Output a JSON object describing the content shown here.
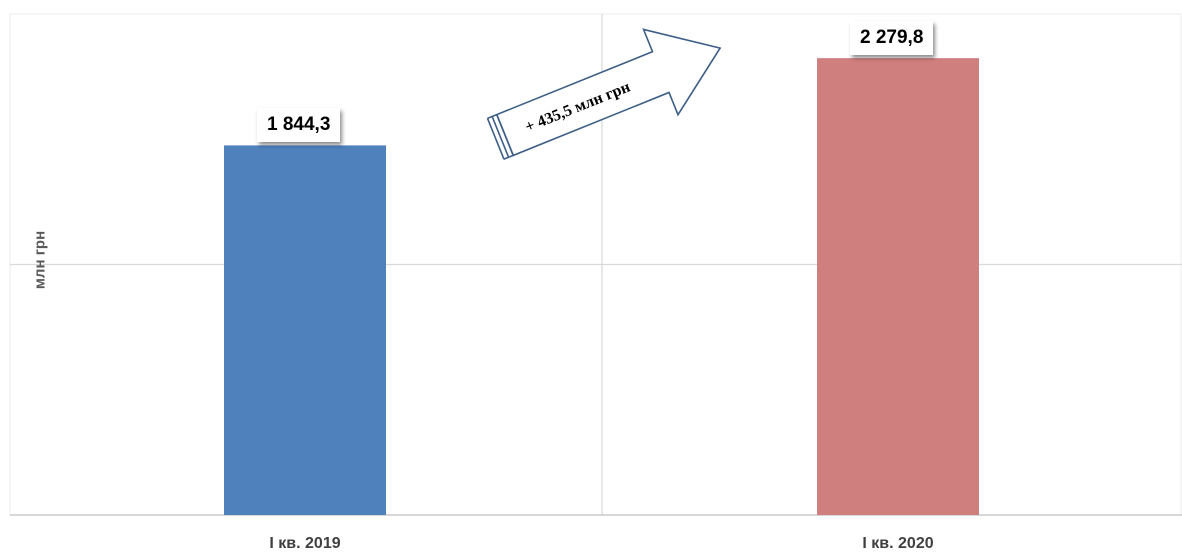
{
  "chart_data": {
    "type": "bar",
    "categories": [
      "I кв. 2019",
      "I кв. 2020"
    ],
    "values": [
      1844.3,
      2279.8
    ],
    "value_labels": [
      "1 844,3",
      "2 279,8"
    ],
    "colors": [
      "#4f81bd",
      "#d07f7f"
    ],
    "ylabel": "млн грн",
    "ylim": [
      0,
      2500
    ],
    "grid": true,
    "annotation": {
      "text": "+ 435,5 млн грн",
      "arrow_color": "#3e5f87"
    }
  }
}
